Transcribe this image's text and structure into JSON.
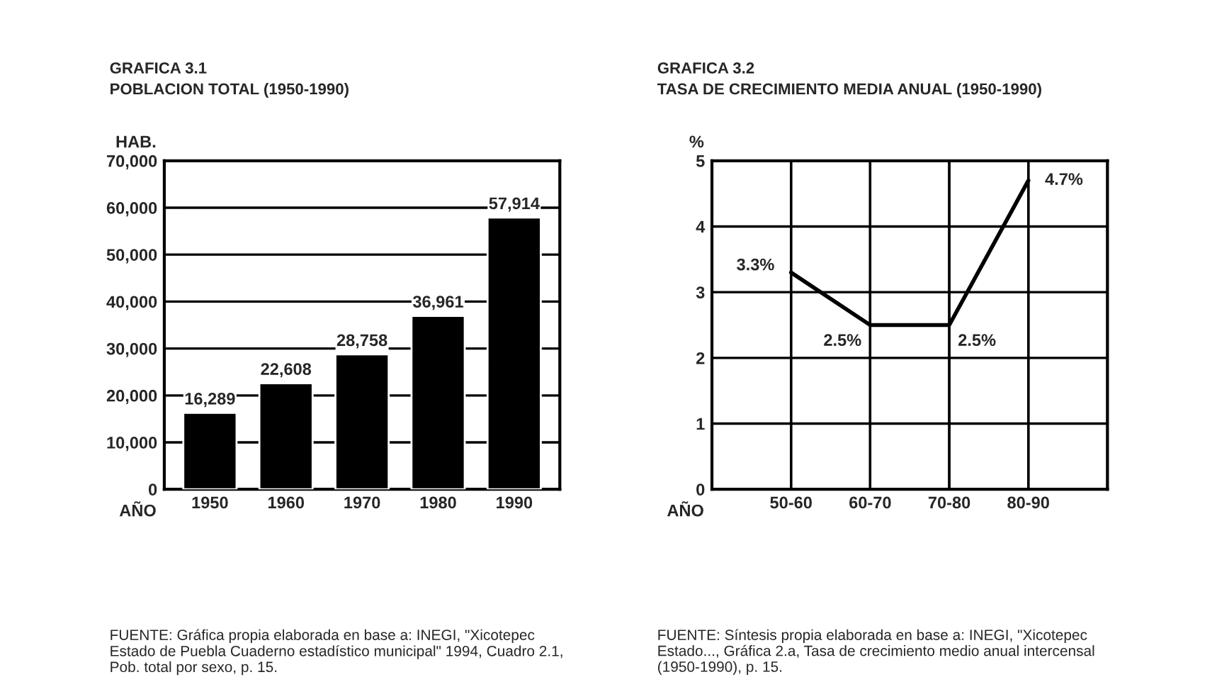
{
  "chart_data": [
    {
      "type": "bar",
      "title": "GRAFICA 3.1",
      "subtitle": "POBLACION TOTAL (1950-1990)",
      "ylabel": "HAB.",
      "xlabel": "AÑO",
      "categories": [
        "1950",
        "1960",
        "1970",
        "1980",
        "1990"
      ],
      "values": [
        16289,
        22608,
        28758,
        36961,
        57914
      ],
      "color": "#000000",
      "value_labels": [
        "16,289",
        "22,608",
        "28,758",
        "36,961",
        "57,914"
      ],
      "ylim": [
        0,
        70000
      ],
      "yticks": [
        {
          "value": 0,
          "label": "0"
        },
        {
          "value": 10000,
          "label": "10,000"
        },
        {
          "value": 20000,
          "label": "20,000"
        },
        {
          "value": 30000,
          "label": "30,000"
        },
        {
          "value": 40000,
          "label": "40,000"
        },
        {
          "value": 50000,
          "label": "50,000"
        },
        {
          "value": 60000,
          "label": "60,000"
        },
        {
          "value": 70000,
          "label": "70,000"
        }
      ],
      "grid": "y",
      "annotations": [
        "FUENTE: Gráfica propia elaborada en base a: INEGI, \"Xicotepec Estado de Puebla Cuaderno estadístico municipal\" 1994, Cuadro 2.1, Pob. total por sexo, p. 15."
      ]
    },
    {
      "type": "line",
      "title": "GRAFICA 3.2",
      "subtitle": "TASA DE CRECIMIENTO MEDIA ANUAL (1950-1990)",
      "ylabel": "%",
      "xlabel": "AÑO",
      "categories": [
        "50-60",
        "60-70",
        "70-80",
        "80-90"
      ],
      "values": [
        3.3,
        2.5,
        2.5,
        4.7
      ],
      "color": "#000000",
      "value_labels": [
        "3.3%",
        "2.5%",
        "2.5%",
        "4.7%"
      ],
      "ylim": [
        0,
        5
      ],
      "yticks": [
        0,
        1,
        2,
        3,
        4,
        5
      ],
      "grid": true,
      "marker": "none",
      "line_style": "solid",
      "annotations": [
        "FUENTE: Síntesis propia elaborada en base a: INEGI, \"Xicotepec Estado..., Gráfica 2.a, Tasa de crecimiento medio anual intercensal (1950-1990), p. 15."
      ]
    }
  ]
}
